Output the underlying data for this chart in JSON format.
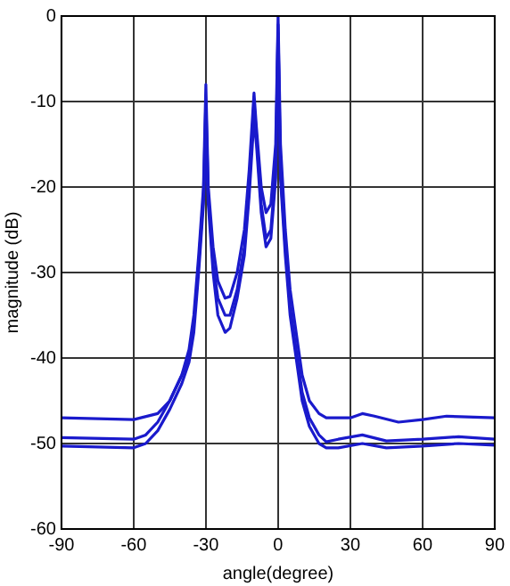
{
  "chart_data": {
    "type": "line",
    "xlabel": "angle(degree)",
    "ylabel": "magnitude (dB)",
    "xlim": [
      -90,
      90
    ],
    "ylim": [
      -60,
      0
    ],
    "xticks": [
      -90,
      -60,
      -30,
      0,
      30,
      60,
      90
    ],
    "yticks": [
      -60,
      -50,
      -40,
      -30,
      -20,
      -10,
      0
    ],
    "grid": true,
    "legend": false,
    "marker": "none",
    "line_style": "solid",
    "series": [
      {
        "color": "#1a1acc",
        "x": [
          -90,
          -60,
          -50,
          -45,
          -40,
          -37,
          -35,
          -33,
          -31,
          -30,
          -29,
          -27,
          -25,
          -22,
          -20,
          -17,
          -14,
          -12,
          -10,
          -9,
          -7,
          -5,
          -3,
          -1,
          0,
          1,
          3,
          5,
          8,
          10,
          13,
          17,
          20,
          30,
          35,
          40,
          50,
          60,
          70,
          90
        ],
        "values": [
          -47,
          -47.2,
          -46.5,
          -45,
          -42,
          -39,
          -35,
          -28,
          -20,
          -8,
          -20,
          -27,
          -31,
          -33,
          -32.8,
          -30,
          -25,
          -18,
          -9,
          -13,
          -20,
          -23,
          -22,
          -15,
          0,
          -15,
          -25,
          -32,
          -38,
          -42,
          -45,
          -46.5,
          -47,
          -47,
          -46.5,
          -46.8,
          -47.5,
          -47.2,
          -46.8,
          -47
        ]
      },
      {
        "color": "#1a1acc",
        "x": [
          -90,
          -60,
          -55,
          -50,
          -45,
          -40,
          -37,
          -35,
          -33,
          -31,
          -30,
          -29,
          -27,
          -25,
          -22,
          -20,
          -17,
          -14,
          -12,
          -10,
          -9,
          -7,
          -5,
          -3,
          -1,
          0,
          1,
          3,
          5,
          8,
          10,
          13,
          17,
          20,
          25,
          35,
          45,
          60,
          75,
          90
        ],
        "values": [
          -49.3,
          -49.5,
          -49,
          -47.5,
          -45,
          -42,
          -40,
          -36,
          -29,
          -21,
          -10,
          -21,
          -29,
          -33,
          -35,
          -35,
          -32,
          -27,
          -20,
          -10,
          -14,
          -22,
          -26,
          -25,
          -18,
          -1,
          -18,
          -27,
          -34,
          -40,
          -44,
          -47,
          -49,
          -49.8,
          -49.5,
          -49,
          -49.7,
          -49.5,
          -49.2,
          -49.5
        ]
      },
      {
        "color": "#1a1acc",
        "x": [
          -90,
          -60,
          -55,
          -50,
          -45,
          -40,
          -37,
          -35,
          -33,
          -31,
          -30,
          -29,
          -27,
          -25,
          -22,
          -20,
          -17,
          -14,
          -12,
          -10,
          -9,
          -7,
          -5,
          -3,
          -1,
          0,
          1,
          3,
          5,
          8,
          10,
          13,
          17,
          20,
          25,
          35,
          45,
          60,
          75,
          90
        ],
        "values": [
          -50.3,
          -50.5,
          -50,
          -48.5,
          -46,
          -43,
          -40.5,
          -37,
          -30,
          -22,
          -15,
          -22,
          -30,
          -35,
          -37,
          -36.5,
          -33,
          -28,
          -21,
          -12,
          -15,
          -23,
          -27,
          -26,
          -19,
          -2,
          -19,
          -28,
          -35,
          -41,
          -45,
          -48,
          -50,
          -50.5,
          -50.5,
          -50,
          -50.5,
          -50.3,
          -50,
          -50.2
        ]
      }
    ]
  }
}
